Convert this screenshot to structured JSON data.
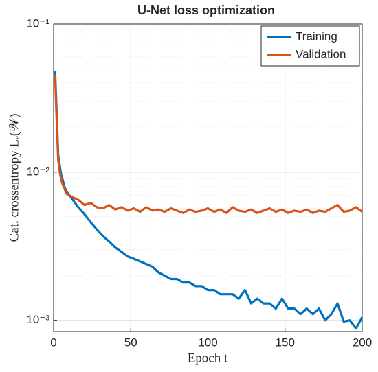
{
  "chart_data": {
    "type": "line",
    "title": "U-Net loss optimization",
    "xlabel": "Epoch t",
    "ylabel": "Cat. crossentropy Lₑ(𝒲)",
    "log_y": true,
    "grid": true,
    "legend": "top-right",
    "xlim": [
      0,
      200
    ],
    "xticks": [
      0,
      50,
      100,
      150,
      200
    ],
    "ylim": [
      0.00084,
      0.1
    ],
    "yticks": [
      {
        "value": 0.001,
        "label": "10⁻³"
      },
      {
        "value": 0.01,
        "label": "10⁻²"
      },
      {
        "value": 0.1,
        "label": "10⁻¹"
      }
    ],
    "yminorticks": [
      0.002,
      0.003,
      0.004,
      0.005,
      0.006,
      0.007,
      0.008,
      0.009,
      0.02,
      0.03,
      0.04,
      0.05,
      0.06,
      0.07,
      0.08,
      0.09
    ],
    "x": [
      1,
      2,
      3,
      4,
      5,
      6,
      7,
      8,
      12,
      16,
      20,
      24,
      28,
      32,
      36,
      40,
      44,
      48,
      52,
      56,
      60,
      64,
      68,
      72,
      76,
      80,
      84,
      88,
      92,
      96,
      100,
      104,
      108,
      112,
      116,
      120,
      124,
      128,
      132,
      136,
      140,
      144,
      148,
      152,
      156,
      160,
      164,
      168,
      172,
      176,
      180,
      184,
      188,
      192,
      196,
      200
    ],
    "series": [
      {
        "name": "Training",
        "color": "#0072bd",
        "values": [
          0.048,
          0.025,
          0.013,
          0.011,
          0.0095,
          0.0088,
          0.008,
          0.0075,
          0.0066,
          0.0058,
          0.0052,
          0.0046,
          0.0041,
          0.0037,
          0.0034,
          0.0031,
          0.0029,
          0.0027,
          0.0026,
          0.0025,
          0.0024,
          0.0023,
          0.0021,
          0.002,
          0.0019,
          0.0019,
          0.0018,
          0.0018,
          0.0017,
          0.0017,
          0.0016,
          0.0016,
          0.0015,
          0.0015,
          0.0015,
          0.0014,
          0.0016,
          0.0013,
          0.0014,
          0.0013,
          0.0013,
          0.0012,
          0.0014,
          0.0012,
          0.0012,
          0.0011,
          0.0012,
          0.0011,
          0.0012,
          0.001,
          0.0011,
          0.0013,
          0.00098,
          0.001,
          0.00088,
          0.00105
        ]
      },
      {
        "name": "Validation",
        "color": "#d95319",
        "values": [
          0.045,
          0.022,
          0.012,
          0.01,
          0.0088,
          0.0082,
          0.0078,
          0.0072,
          0.0068,
          0.0065,
          0.006,
          0.0062,
          0.0058,
          0.0057,
          0.006,
          0.0056,
          0.0058,
          0.0055,
          0.0057,
          0.0054,
          0.0058,
          0.0055,
          0.0056,
          0.0054,
          0.0057,
          0.0055,
          0.0053,
          0.0056,
          0.0054,
          0.0055,
          0.0057,
          0.0054,
          0.0056,
          0.0053,
          0.0058,
          0.0055,
          0.0054,
          0.0056,
          0.0053,
          0.0055,
          0.0057,
          0.0054,
          0.0056,
          0.0053,
          0.0055,
          0.0054,
          0.0056,
          0.0053,
          0.0055,
          0.0054,
          0.0057,
          0.006,
          0.0054,
          0.0055,
          0.0058,
          0.0054
        ]
      }
    ]
  }
}
